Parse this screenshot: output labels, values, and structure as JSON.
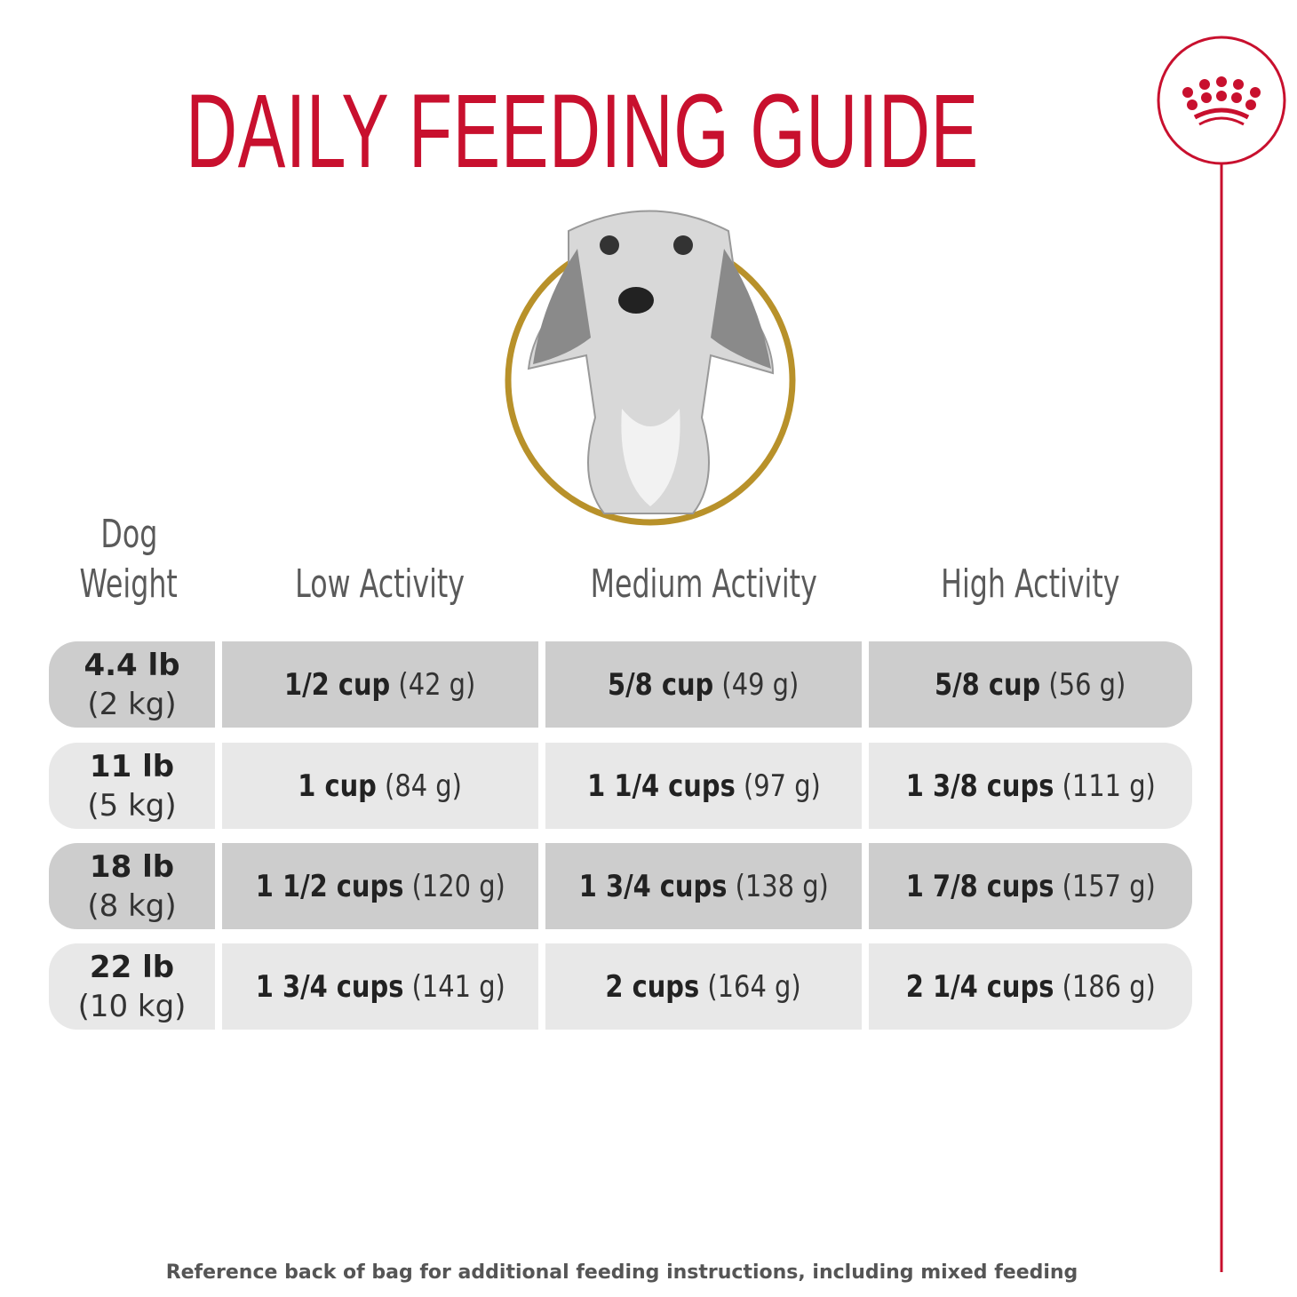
{
  "title": "DAILY FEEDING GUIDE",
  "colors": {
    "brand_red": "#c8102e",
    "gold_ring": "#b8912a",
    "row_dark": "#cdcdcd",
    "row_light": "#e8e8e8"
  },
  "logo": {
    "icon": "royal-canin-crown-icon"
  },
  "image": {
    "icon": "dachshund-portrait"
  },
  "table": {
    "headers": {
      "weight_line1": "Dog",
      "weight_line2": "Weight",
      "low": "Low Activity",
      "medium": "Medium Activity",
      "high": "High Activity"
    },
    "rows": [
      {
        "lb": "4.4 lb",
        "kg": "(2 kg)",
        "low": {
          "cups": "1/2 cup",
          "grams": "(42 g)"
        },
        "medium": {
          "cups": "5/8 cup",
          "grams": "(49 g)"
        },
        "high": {
          "cups": "5/8 cup",
          "grams": "(56 g)"
        }
      },
      {
        "lb": "11 lb",
        "kg": "(5 kg)",
        "low": {
          "cups": "1 cup",
          "grams": "(84 g)"
        },
        "medium": {
          "cups": "1 1/4 cups",
          "grams": "(97 g)"
        },
        "high": {
          "cups": "1 3/8 cups",
          "grams": "(111 g)"
        }
      },
      {
        "lb": "18 lb",
        "kg": "(8 kg)",
        "low": {
          "cups": "1 1/2 cups",
          "grams": "(120 g)"
        },
        "medium": {
          "cups": "1 3/4 cups",
          "grams": "(138 g)"
        },
        "high": {
          "cups": "1 7/8 cups",
          "grams": "(157 g)"
        }
      },
      {
        "lb": "22 lb",
        "kg": "(10 kg)",
        "low": {
          "cups": "1 3/4 cups",
          "grams": "(141 g)"
        },
        "medium": {
          "cups": "2 cups",
          "grams": "(164 g)"
        },
        "high": {
          "cups": "2 1/4 cups",
          "grams": "(186 g)"
        }
      }
    ]
  },
  "footer": "Reference back of bag for additional feeding instructions, including mixed feeding"
}
